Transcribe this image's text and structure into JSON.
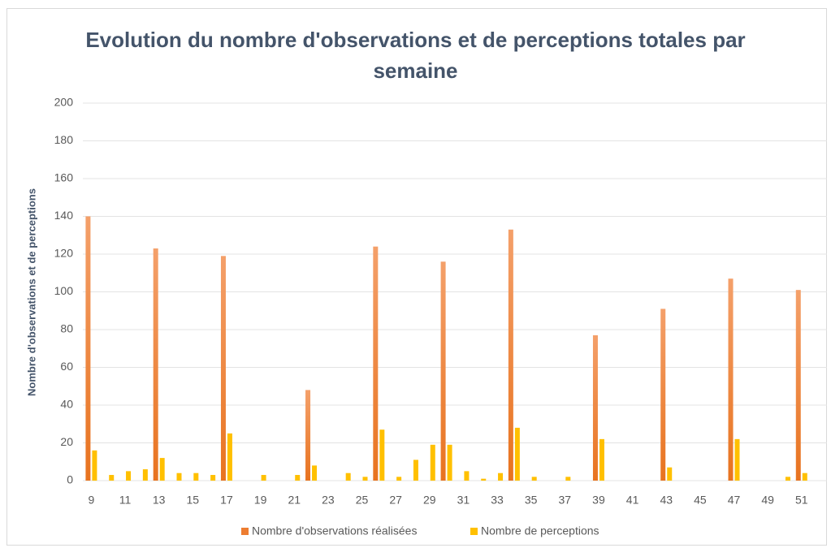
{
  "chart_data": {
    "type": "bar",
    "title": "Evolution du nombre d'observations et de perceptions totales par semaine",
    "ylabel": "Nombre d'observations et de perceptions",
    "categories": [
      9,
      null,
      11,
      null,
      13,
      null,
      15,
      null,
      17,
      null,
      19,
      null,
      21,
      null,
      23,
      null,
      25,
      null,
      27,
      null,
      29,
      null,
      31,
      null,
      33,
      null,
      35,
      null,
      37,
      null,
      39,
      null,
      41,
      null,
      43,
      null,
      45,
      null,
      47,
      null,
      49,
      null,
      51,
      null
    ],
    "series": [
      {
        "name": "Nombre d'observations réalisées",
        "color": "#ed7d31",
        "values": [
          140,
          0,
          0,
          0,
          123,
          0,
          0,
          0,
          119,
          0,
          0,
          0,
          0,
          48,
          0,
          0,
          0,
          124,
          0,
          0,
          0,
          116,
          0,
          0,
          0,
          133,
          0,
          0,
          0,
          0,
          77,
          0,
          0,
          0,
          91,
          0,
          0,
          0,
          107,
          0,
          0,
          0,
          101,
          0
        ]
      },
      {
        "name": "Nombre de perceptions",
        "color": "#ffc000",
        "values": [
          16,
          3,
          5,
          6,
          12,
          4,
          4,
          3,
          25,
          0,
          3,
          0,
          3,
          8,
          0,
          4,
          2,
          27,
          2,
          11,
          19,
          19,
          5,
          1,
          4,
          28,
          2,
          0,
          2,
          0,
          22,
          0,
          0,
          0,
          7,
          0,
          0,
          0,
          22,
          0,
          0,
          2,
          4,
          0
        ]
      }
    ],
    "ylim": [
      0,
      200
    ],
    "yticks": [
      0,
      20,
      40,
      60,
      80,
      100,
      120,
      140,
      160,
      180,
      200
    ],
    "grid": true,
    "legend": "bottom"
  }
}
